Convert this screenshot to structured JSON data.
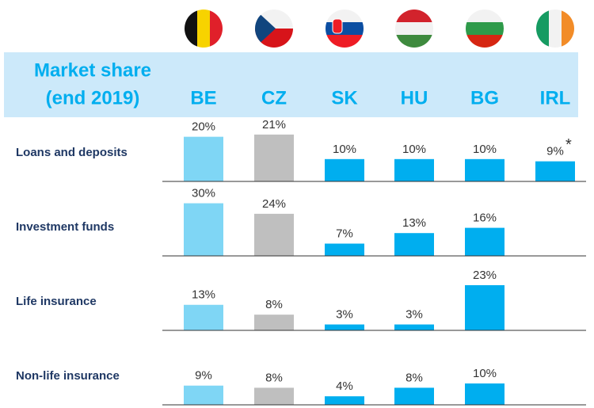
{
  "chart_data": {
    "type": "bar",
    "title": [
      "Market share",
      "(end 2019)"
    ],
    "categories": [
      "BE",
      "CZ",
      "SK",
      "HU",
      "BG",
      "IRL"
    ],
    "colors": [
      "#7fd6f5",
      "#bfbfbf",
      "#00aeef",
      "#00aeef",
      "#00aeef",
      "#00aeef"
    ],
    "annotation": "*",
    "series": [
      {
        "name": "Loans and deposits",
        "values": [
          20,
          21,
          10,
          10,
          10,
          9
        ],
        "value_labels": [
          "20%",
          "21%",
          "10%",
          "10%",
          "10%",
          "9%"
        ],
        "ylim": [
          0,
          22
        ]
      },
      {
        "name": "Investment funds",
        "values": [
          30,
          24,
          7,
          13,
          16,
          null
        ],
        "value_labels": [
          "30%",
          "24%",
          "7%",
          "13%",
          "16%",
          null
        ],
        "ylim": [
          0,
          28
        ]
      },
      {
        "name": "Life insurance",
        "values": [
          13,
          8,
          3,
          3,
          23,
          null
        ],
        "value_labels": [
          "13%",
          "8%",
          "3%",
          "3%",
          "23%",
          null
        ],
        "ylim": [
          0,
          25
        ]
      },
      {
        "name": "Non-life insurance",
        "values": [
          9,
          8,
          4,
          8,
          10,
          null
        ],
        "value_labels": [
          "9%",
          "8%",
          "4%",
          "8%",
          "10%",
          null
        ],
        "ylim": [
          0,
          23
        ]
      }
    ]
  }
}
